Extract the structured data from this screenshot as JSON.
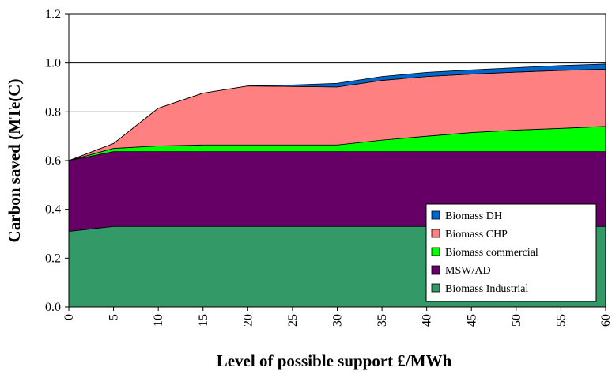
{
  "chart_data": {
    "type": "area",
    "stacked": true,
    "xlabel": "Level of possible support  £/MWh",
    "ylabel": "Carbon saved (MTe(C)",
    "x": [
      0,
      5,
      10,
      15,
      20,
      25,
      30,
      35,
      40,
      45,
      50,
      55,
      60
    ],
    "xlim": [
      0,
      60
    ],
    "ylim": [
      0,
      1.2
    ],
    "x_ticks": [
      "0",
      "5",
      "10",
      "15",
      "20",
      "25",
      "30",
      "35",
      "40",
      "45",
      "50",
      "55",
      "60"
    ],
    "y_ticks": [
      "0.0",
      "0.2",
      "0.4",
      "0.6",
      "0.8",
      "1.0",
      "1.2"
    ],
    "grid": "horizontal",
    "legend_position": "bottom-right",
    "series": [
      {
        "name": "Biomass Industrial",
        "color": "#339966",
        "values": [
          0.31,
          0.33,
          0.33,
          0.33,
          0.33,
          0.33,
          0.33,
          0.33,
          0.33,
          0.33,
          0.33,
          0.33,
          0.33
        ]
      },
      {
        "name": "MSW/AD",
        "color": "#660066",
        "values": [
          0.29,
          0.307,
          0.307,
          0.307,
          0.307,
          0.307,
          0.307,
          0.307,
          0.307,
          0.307,
          0.307,
          0.307,
          0.307
        ]
      },
      {
        "name": "Biomass commercial",
        "color": "#00FF00",
        "values": [
          0.0,
          0.013,
          0.023,
          0.027,
          0.027,
          0.027,
          0.027,
          0.047,
          0.063,
          0.078,
          0.088,
          0.095,
          0.103
        ]
      },
      {
        "name": "Biomass CHP",
        "color": "#FF8080",
        "values": [
          0.0,
          0.02,
          0.155,
          0.213,
          0.242,
          0.24,
          0.238,
          0.245,
          0.245,
          0.24,
          0.238,
          0.238,
          0.235
        ]
      },
      {
        "name": "Biomass DH",
        "color": "#0066CC",
        "values": [
          0.0,
          0.0,
          0.0,
          0.0,
          0.0,
          0.006,
          0.015,
          0.016,
          0.017,
          0.017,
          0.018,
          0.02,
          0.021
        ]
      }
    ],
    "legend_order": [
      "Biomass DH",
      "Biomass CHP",
      "Biomass commercial",
      "MSW/AD",
      "Biomass Industrial"
    ]
  }
}
